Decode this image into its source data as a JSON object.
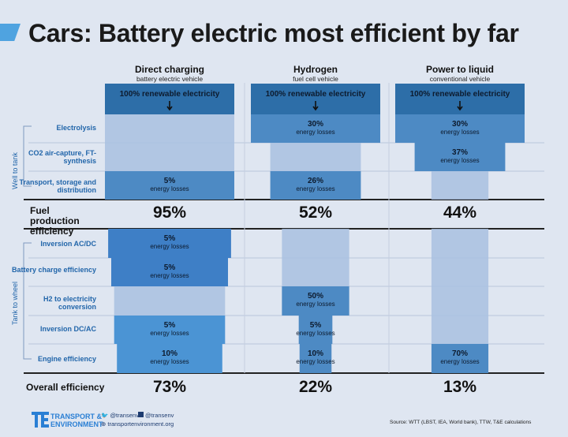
{
  "title": "Cars: Battery electric most efficient by far",
  "colors": {
    "dark": "#2d6ea8",
    "mid": "#4d8ac4",
    "light": "#a9c0e0",
    "pale": "#c3d3ea",
    "accent": "#4fa3e0"
  },
  "chart_data": {
    "type": "table",
    "title": "Cars: Battery electric most efficient by far",
    "columns": [
      {
        "name": "Direct charging",
        "sub": "battery electric vehicle"
      },
      {
        "name": "Hydrogen",
        "sub": "fuel cell vehicle"
      },
      {
        "name": "Power to liquid",
        "sub": "conventional vehicle"
      }
    ],
    "source_label": "100% renewable electricity",
    "loss_caption": "energy losses",
    "groups": [
      {
        "label": "Well to tank",
        "steps": [
          "Electrolysis",
          "CO2 air-capture, FT-synthesis",
          "Transport, storage and distribution"
        ]
      },
      {
        "label": "Tank to wheel",
        "steps": [
          "Inversion AC/DC",
          "Battery charge efficiency",
          "H2 to electricity conversion",
          "Inversion DC/AC",
          "Engine efficiency"
        ]
      }
    ],
    "losses": [
      [
        "",
        "30%",
        "30%"
      ],
      [
        "",
        "",
        "37%"
      ],
      [
        "5%",
        "26%",
        ""
      ],
      [
        "5%",
        "",
        ""
      ],
      [
        "5%",
        "",
        ""
      ],
      [
        "",
        "50%",
        ""
      ],
      [
        "5%",
        "5%",
        ""
      ],
      [
        "10%",
        "10%",
        "70%"
      ]
    ],
    "fuel_label": "Fuel production efficiency",
    "fuel_efficiency": [
      95,
      52,
      44
    ],
    "fuel_efficiency_text": [
      "95%",
      "52%",
      "44%"
    ],
    "overall_label": "Overall efficiency",
    "overall_efficiency": [
      73,
      22,
      13
    ],
    "overall_efficiency_text": [
      "73%",
      "22%",
      "13%"
    ]
  },
  "footer": {
    "org_line1": "TRANSPORT &",
    "org_line2": "ENVIRONMENT",
    "twitter": "@transenv",
    "facebook": "@transenv",
    "website": "transportenvironment.org",
    "source": "Source: WTT (LBST, IEA, World bank), TTW, T&E calculations"
  }
}
